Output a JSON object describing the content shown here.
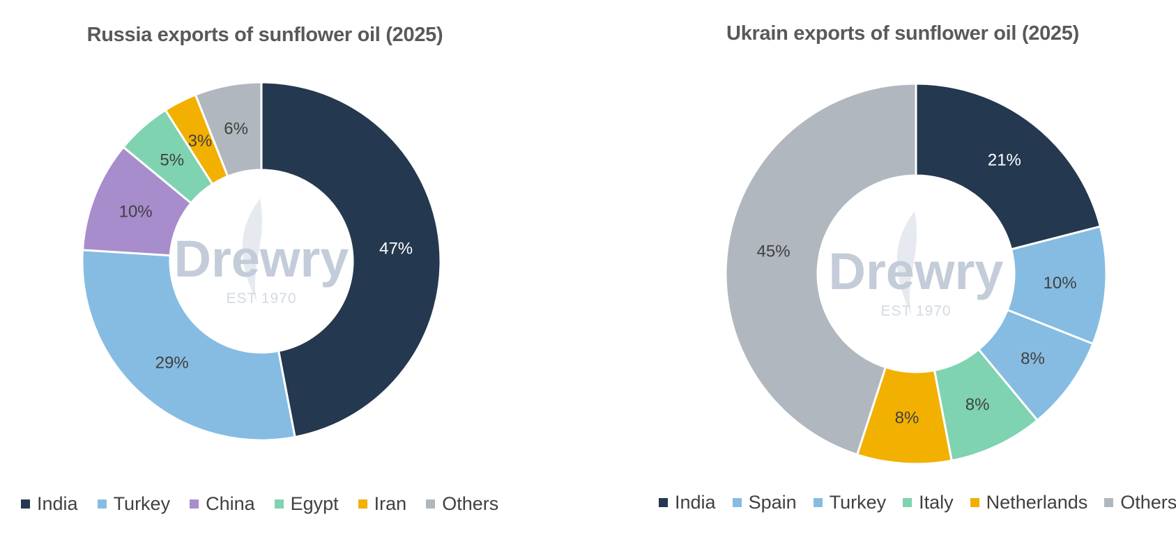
{
  "colors": {
    "India": "#24384f",
    "Turkey": "#86bce2",
    "Spain": "#86bce2",
    "China": "#a78dcc",
    "Egypt": "#7fd3b0",
    "Italy": "#7fd3b0",
    "Iran": "#f2b000",
    "Netherlands": "#f2b000",
    "Others": "#b1b7be"
  },
  "watermark": {
    "word": "Drewry",
    "tagline": "EST 1970"
  },
  "chart_data": [
    {
      "type": "pie",
      "title": "Russia exports of sunflower oil (2025)",
      "categories": [
        "India",
        "Turkey",
        "China",
        "Egypt",
        "Iran",
        "Others"
      ],
      "values": [
        47,
        29,
        10,
        5,
        3,
        6
      ],
      "labels": [
        "47%",
        "29%",
        "10%",
        "5%",
        "3%",
        "6%"
      ],
      "legend": "bottom",
      "hole": "donut"
    },
    {
      "type": "pie",
      "title": "Ukrain exports of sunflower oil (2025)",
      "categories": [
        "India",
        "Spain",
        "Turkey",
        "Italy",
        "Netherlands",
        "Others"
      ],
      "values": [
        21,
        10,
        8,
        8,
        8,
        45
      ],
      "labels": [
        "21%",
        "10%",
        "8%",
        "8%",
        "8%",
        "45%"
      ],
      "legend": "bottom",
      "hole": "donut"
    }
  ]
}
